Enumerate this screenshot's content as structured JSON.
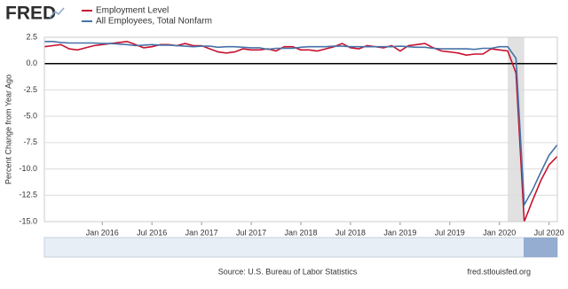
{
  "logo": "FRED",
  "chart_data": {
    "type": "line",
    "y_label": "Percent Change from Year Ago",
    "source": "Source: U.S. Bureau of Labor Statistics",
    "site": "fred.stlouisfed.org",
    "x": [
      "2015-06",
      "2015-07",
      "2015-08",
      "2015-09",
      "2015-10",
      "2015-11",
      "2015-12",
      "2016-01",
      "2016-02",
      "2016-03",
      "2016-04",
      "2016-05",
      "2016-06",
      "2016-07",
      "2016-08",
      "2016-09",
      "2016-10",
      "2016-11",
      "2016-12",
      "2017-01",
      "2017-02",
      "2017-03",
      "2017-04",
      "2017-05",
      "2017-06",
      "2017-07",
      "2017-08",
      "2017-09",
      "2017-10",
      "2017-11",
      "2017-12",
      "2018-01",
      "2018-02",
      "2018-03",
      "2018-04",
      "2018-05",
      "2018-06",
      "2018-07",
      "2018-08",
      "2018-09",
      "2018-10",
      "2018-11",
      "2018-12",
      "2019-01",
      "2019-02",
      "2019-03",
      "2019-04",
      "2019-05",
      "2019-06",
      "2019-07",
      "2019-08",
      "2019-09",
      "2019-10",
      "2019-11",
      "2019-12",
      "2020-01",
      "2020-02",
      "2020-03",
      "2020-04",
      "2020-05",
      "2020-06",
      "2020-07",
      "2020-08"
    ],
    "series": [
      {
        "name": "Employment Level",
        "color": "#c8102e",
        "values": [
          1.6,
          1.7,
          1.8,
          1.4,
          1.3,
          1.5,
          1.7,
          1.8,
          1.9,
          2.0,
          2.1,
          1.8,
          1.5,
          1.6,
          1.8,
          1.8,
          1.7,
          1.9,
          1.7,
          1.7,
          1.4,
          1.1,
          1.0,
          1.1,
          1.4,
          1.3,
          1.3,
          1.4,
          1.2,
          1.6,
          1.6,
          1.3,
          1.3,
          1.2,
          1.4,
          1.6,
          1.9,
          1.5,
          1.4,
          1.7,
          1.6,
          1.5,
          1.7,
          1.2,
          1.7,
          1.8,
          1.9,
          1.5,
          1.2,
          1.1,
          1.0,
          0.8,
          0.9,
          0.9,
          1.4,
          1.3,
          1.2,
          -0.9,
          -15.0,
          -13.0,
          -11.1,
          -9.6,
          -8.8
        ]
      },
      {
        "name": "All Employees, Total Nonfarm",
        "color": "#4572a7",
        "values": [
          2.1,
          2.1,
          2.0,
          1.95,
          1.95,
          1.95,
          1.95,
          1.9,
          1.9,
          1.85,
          1.8,
          1.7,
          1.75,
          1.8,
          1.75,
          1.75,
          1.7,
          1.65,
          1.6,
          1.65,
          1.65,
          1.55,
          1.6,
          1.6,
          1.55,
          1.5,
          1.5,
          1.35,
          1.45,
          1.45,
          1.45,
          1.55,
          1.6,
          1.6,
          1.6,
          1.65,
          1.65,
          1.6,
          1.6,
          1.6,
          1.6,
          1.6,
          1.6,
          1.65,
          1.6,
          1.55,
          1.55,
          1.45,
          1.4,
          1.4,
          1.4,
          1.4,
          1.35,
          1.45,
          1.45,
          1.6,
          1.6,
          0.5,
          -13.4,
          -12.0,
          -10.3,
          -8.7,
          -7.7
        ]
      }
    ],
    "xlim": [
      "2015-06",
      "2020-08"
    ],
    "xticks": [
      {
        "value": "2016-01",
        "label": "Jan 2016"
      },
      {
        "value": "2016-07",
        "label": "Jul 2016"
      },
      {
        "value": "2017-01",
        "label": "Jan 2017"
      },
      {
        "value": "2017-07",
        "label": "Jul 2017"
      },
      {
        "value": "2018-01",
        "label": "Jan 2018"
      },
      {
        "value": "2018-07",
        "label": "Jul 2018"
      },
      {
        "value": "2019-01",
        "label": "Jan 2019"
      },
      {
        "value": "2019-07",
        "label": "Jul 2019"
      },
      {
        "value": "2020-01",
        "label": "Jan 2020"
      },
      {
        "value": "2020-07",
        "label": "Jul 2020"
      }
    ],
    "ylim": [
      -15,
      2.5
    ],
    "yticks": [
      2.5,
      {
        "value": 0,
        "label": "0.0"
      },
      -2.5,
      {
        "value": -5,
        "label": "-5.0"
      },
      -7.5,
      {
        "value": -10,
        "label": "-10.0"
      },
      -12.5,
      {
        "value": -15,
        "label": "-15.0"
      }
    ],
    "grid": true,
    "recession": [
      "2020-02",
      "2020-04"
    ]
  }
}
